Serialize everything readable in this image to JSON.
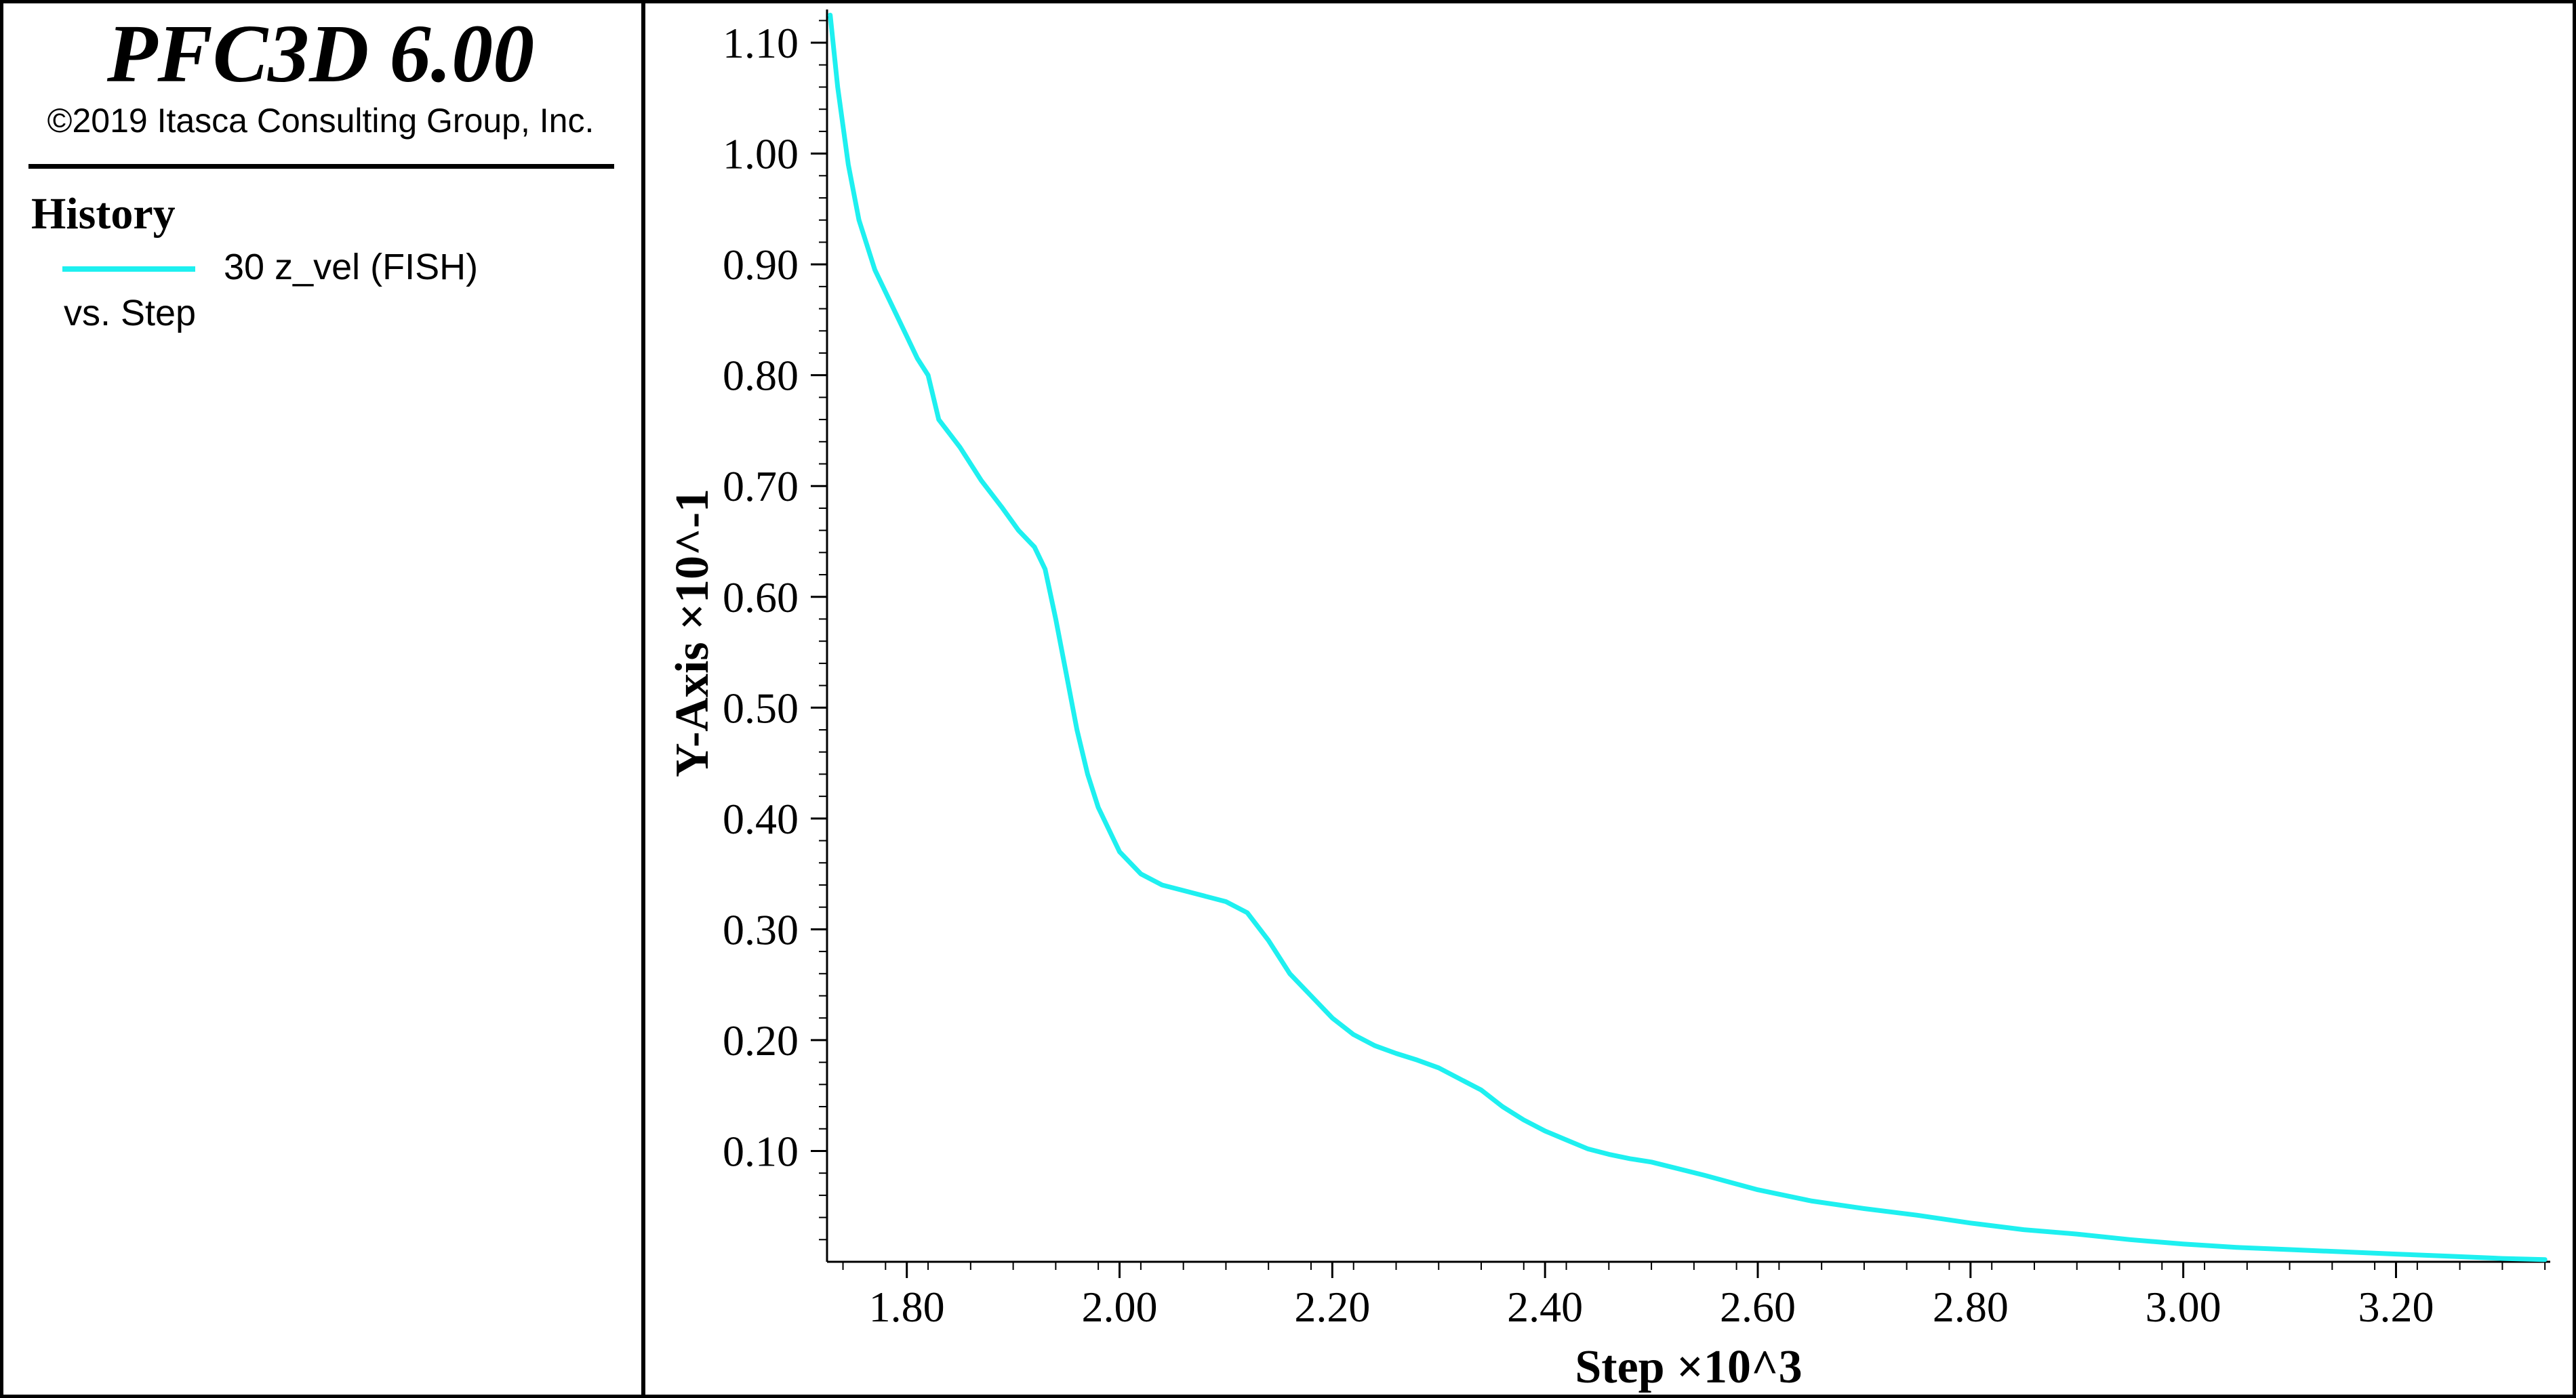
{
  "app": {
    "title": "PFC3D 6.00",
    "copyright": "©2019 Itasca Consulting Group, Inc."
  },
  "legend": {
    "heading": "History",
    "series_label": "30 z_vel (FISH)",
    "vs_label": "vs. Step"
  },
  "colors": {
    "series": "#1ef0f0",
    "axis": "#000000",
    "background": "#ffffff"
  },
  "chart_data": {
    "type": "line",
    "xlabel": "Step ×10^3",
    "ylabel": "Y-Axis ×10^-1",
    "xlim": [
      1.725,
      3.345
    ],
    "ylim": [
      0.0,
      1.13
    ],
    "x_ticks": [
      1.8,
      2.0,
      2.2,
      2.4,
      2.6,
      2.8,
      3.0,
      3.2
    ],
    "x_tick_labels": [
      "1.80",
      "2.00",
      "2.20",
      "2.40",
      "2.60",
      "2.80",
      "3.00",
      "3.20"
    ],
    "y_ticks": [
      0.1,
      0.2,
      0.3,
      0.4,
      0.5,
      0.6,
      0.7,
      0.8,
      0.9,
      1.0,
      1.1
    ],
    "y_tick_labels": [
      "0.10",
      "0.20",
      "0.30",
      "0.40",
      "0.50",
      "0.60",
      "0.70",
      "0.80",
      "0.90",
      "1.00",
      "1.10"
    ],
    "grid": false,
    "series": [
      {
        "name": "30 z_vel (FISH)",
        "x": [
          1.728,
          1.735,
          1.745,
          1.755,
          1.77,
          1.78,
          1.79,
          1.8,
          1.81,
          1.82,
          1.83,
          1.85,
          1.87,
          1.89,
          1.905,
          1.92,
          1.93,
          1.94,
          1.95,
          1.96,
          1.97,
          1.98,
          2.0,
          2.02,
          2.04,
          2.06,
          2.08,
          2.1,
          2.12,
          2.14,
          2.16,
          2.18,
          2.2,
          2.22,
          2.24,
          2.26,
          2.28,
          2.3,
          2.32,
          2.34,
          2.36,
          2.38,
          2.4,
          2.42,
          2.44,
          2.46,
          2.48,
          2.5,
          2.55,
          2.6,
          2.65,
          2.7,
          2.75,
          2.8,
          2.85,
          2.9,
          2.95,
          3.0,
          3.05,
          3.1,
          3.15,
          3.2,
          3.25,
          3.3,
          3.34
        ],
        "y": [
          1.125,
          1.06,
          0.99,
          0.94,
          0.895,
          0.875,
          0.855,
          0.835,
          0.815,
          0.8,
          0.76,
          0.735,
          0.705,
          0.68,
          0.66,
          0.645,
          0.625,
          0.58,
          0.53,
          0.48,
          0.44,
          0.41,
          0.37,
          0.35,
          0.34,
          0.335,
          0.33,
          0.325,
          0.315,
          0.29,
          0.26,
          0.24,
          0.22,
          0.205,
          0.195,
          0.188,
          0.182,
          0.175,
          0.165,
          0.155,
          0.14,
          0.128,
          0.118,
          0.11,
          0.102,
          0.097,
          0.093,
          0.09,
          0.078,
          0.065,
          0.055,
          0.048,
          0.042,
          0.035,
          0.029,
          0.025,
          0.02,
          0.016,
          0.013,
          0.011,
          0.009,
          0.007,
          0.005,
          0.003,
          0.002
        ]
      }
    ]
  }
}
